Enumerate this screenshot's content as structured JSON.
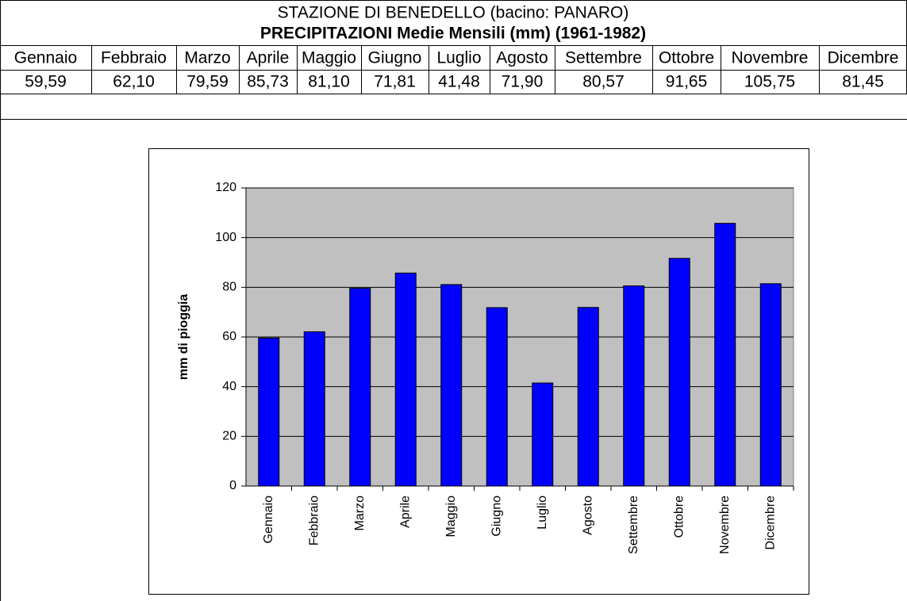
{
  "header": {
    "title": "STAZIONE DI BENEDELLO (bacino: PANARO)",
    "subtitle": "PRECIPITAZIONI Medie Mensili (mm) (1961-1982)"
  },
  "table": {
    "headers": [
      "Gennaio",
      "Febbraio",
      "Marzo",
      "Aprile",
      "Maggio",
      "Giugno",
      "Luglio",
      "Agosto",
      "Settembre",
      "Ottobre",
      "Novembre",
      "Dicembre"
    ],
    "values": [
      "59,59",
      "62,10",
      "79,59",
      "85,73",
      "81,10",
      "71,81",
      "41,48",
      "71,90",
      "80,57",
      "91,65",
      "105,75",
      "81,45"
    ]
  },
  "chart_data": {
    "type": "bar",
    "y_label": "mm di pioggia",
    "categories": [
      "Gennaio",
      "Febbraio",
      "Marzo",
      "Aprile",
      "Maggio",
      "Giugno",
      "Luglio",
      "Agosto",
      "Settembre",
      "Ottobre",
      "Novembre",
      "Dicembre"
    ],
    "values": [
      59.59,
      62.1,
      79.59,
      85.73,
      81.1,
      71.81,
      41.48,
      71.9,
      80.57,
      91.65,
      105.75,
      81.45
    ],
    "color": "#0000ff",
    "plot_background": "#c0c0c0",
    "ylim": [
      0,
      120
    ],
    "yticks": [
      0,
      20,
      40,
      60,
      80,
      100,
      120
    ],
    "grid": true
  }
}
